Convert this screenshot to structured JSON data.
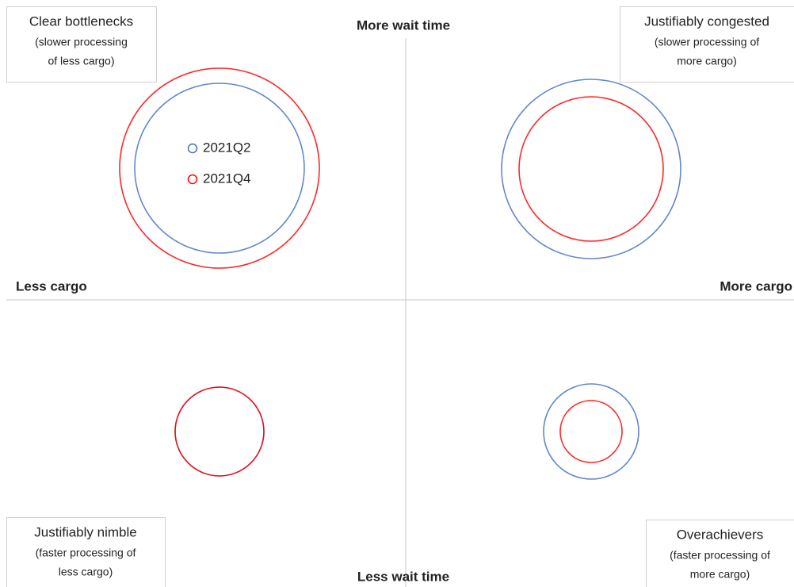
{
  "chart_data": {
    "type": "quadrant-bubble",
    "axis_labels": {
      "top": "More wait time",
      "bottom": "Less wait time",
      "left": "Less cargo",
      "right": "More cargo"
    },
    "quadrants": [
      {
        "title": "Clear bottlenecks",
        "subtitle": [
          "(slower processing",
          "of less cargo)"
        ]
      },
      {
        "title": "Justifiably congested",
        "subtitle": [
          "(slower processing of",
          "more cargo)"
        ]
      },
      {
        "title": "Justifiably nimble",
        "subtitle": [
          "(faster processing of",
          "less cargo)"
        ]
      },
      {
        "title": "Overachievers",
        "subtitle": [
          "(faster processing of",
          "more cargo)"
        ]
      }
    ],
    "series": [
      {
        "name": "2021Q2",
        "color": "#4472c4",
        "values": [
          107,
          113,
          56,
          60
        ]
      },
      {
        "name": "2021Q4",
        "color": "#ff0000",
        "values": [
          126,
          91,
          56,
          39
        ]
      }
    ]
  }
}
